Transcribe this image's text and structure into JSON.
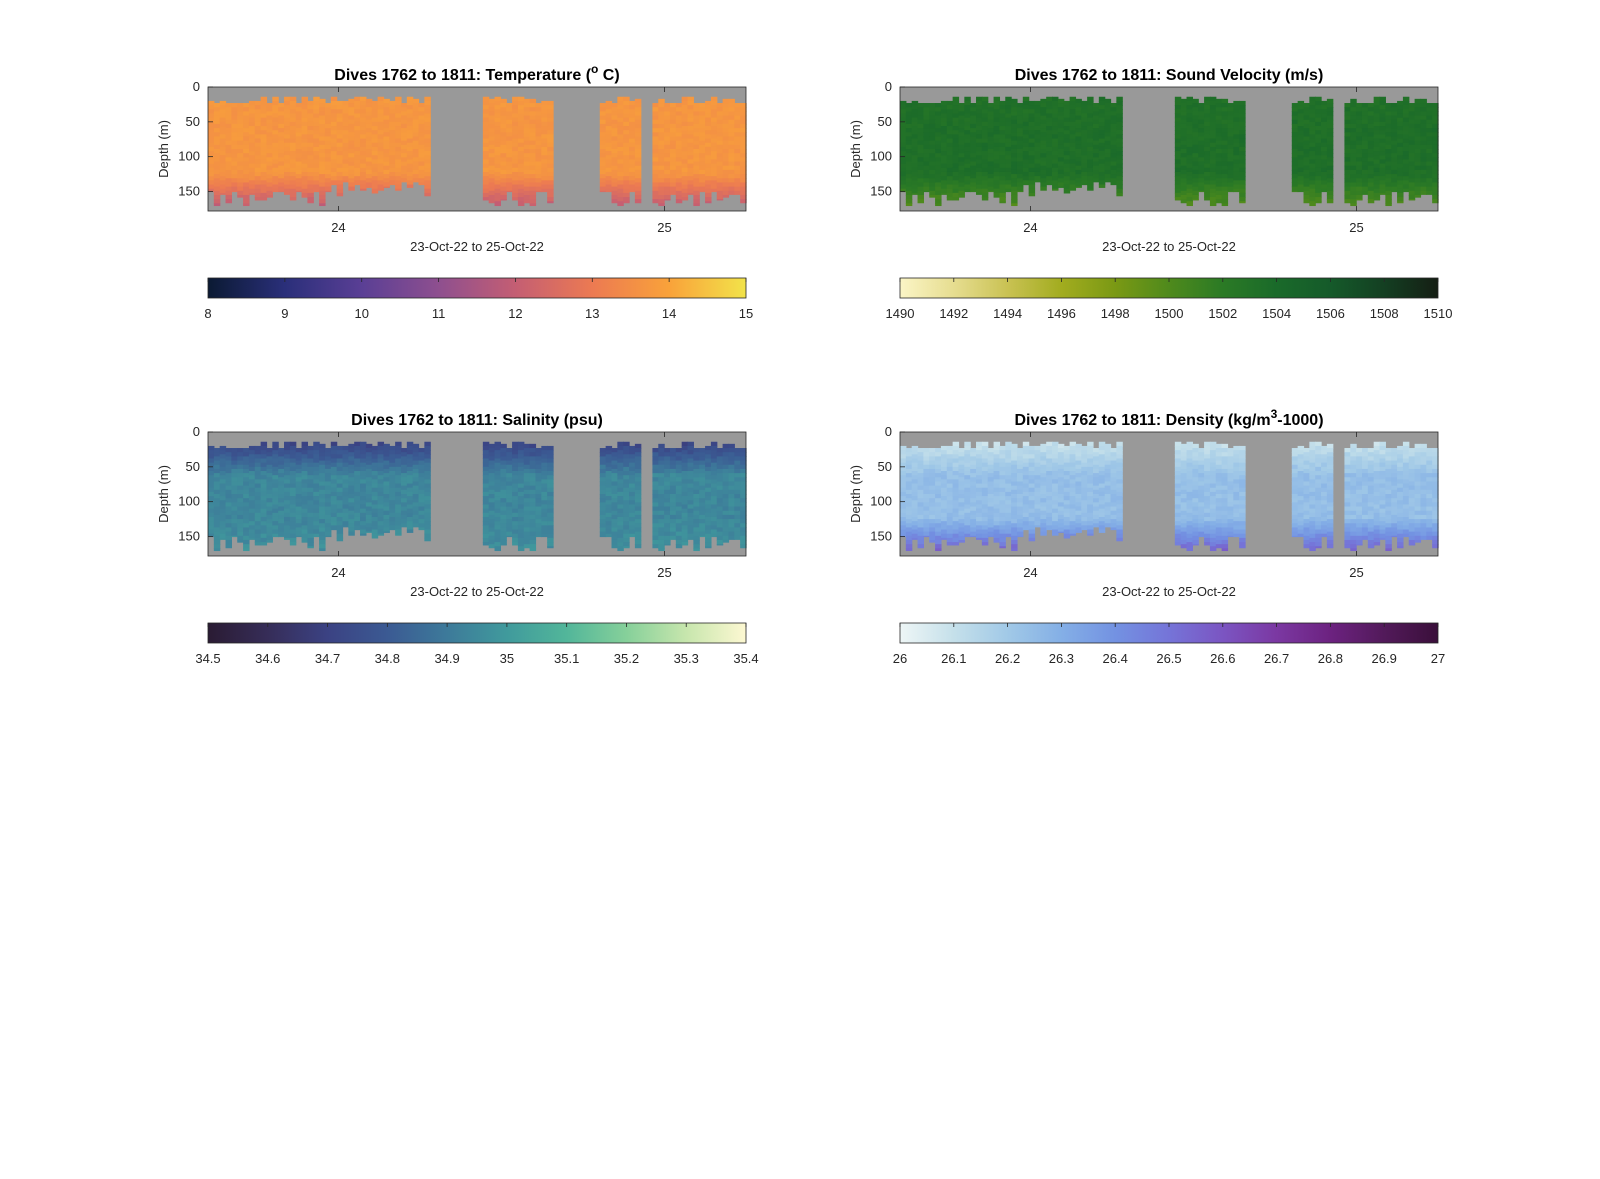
{
  "figure": {
    "background": "#ffffff",
    "nodata_color": "#999999"
  },
  "chart_data": [
    {
      "id": "temperature",
      "type": "heatmap",
      "title_main": "Dives 1762 to 1811: Temperature (",
      "title_sup": "o",
      "title_tail": " C)",
      "ylabel": "Depth (m)",
      "xlabel": "23-Oct-22 to 25-Oct-22",
      "yticks": [
        "0",
        "50",
        "100",
        "150"
      ],
      "ylim": [
        0,
        178
      ],
      "y_reversed": true,
      "xticks": [
        "24",
        "25"
      ],
      "xlim": [
        23.6,
        25.25
      ],
      "colorbar": {
        "ticks": [
          "8",
          "9",
          "10",
          "11",
          "12",
          "13",
          "14",
          "15"
        ],
        "range": [
          8,
          15
        ],
        "colors": [
          "#0b1a33",
          "#2a2f7a",
          "#5a3f95",
          "#8e4f8f",
          "#c45e73",
          "#ec7a52",
          "#f9a23a",
          "#f2e34a"
        ]
      },
      "field": {
        "surface": 13.7,
        "mid": 13.7,
        "deep": 11.7,
        "variation": 0.15
      },
      "data_gaps": [
        [
          24.29,
          24.44
        ],
        [
          24.66,
          24.81
        ],
        [
          24.93,
          24.96
        ]
      ]
    },
    {
      "id": "sound-velocity",
      "type": "heatmap",
      "title_main": "Dives 1762 to 1811: Sound Velocity (m/s)",
      "title_sup": "",
      "title_tail": "",
      "ylabel": "Depth (m)",
      "xlabel": "23-Oct-22 to 25-Oct-22",
      "yticks": [
        "0",
        "50",
        "100",
        "150"
      ],
      "ylim": [
        0,
        178
      ],
      "y_reversed": true,
      "xticks": [
        "24",
        "25"
      ],
      "xlim": [
        23.6,
        25.25
      ],
      "colorbar": {
        "ticks": [
          "1490",
          "1492",
          "1494",
          "1496",
          "1498",
          "1500",
          "1502",
          "1504",
          "1506",
          "1508",
          "1510"
        ],
        "range": [
          1490,
          1510
        ],
        "colors": [
          "#fbf5c6",
          "#e6dd90",
          "#c9c253",
          "#a2ac1f",
          "#7a9914",
          "#4f8a1c",
          "#2b7a25",
          "#1a6a2a",
          "#155a2a",
          "#143f22",
          "#151e14"
        ]
      },
      "field": {
        "surface": 1503.2,
        "mid": 1503.4,
        "deep": 1499.5,
        "variation": 0.5
      },
      "data_gaps": [
        [
          24.29,
          24.44
        ],
        [
          24.66,
          24.81
        ],
        [
          24.93,
          24.96
        ]
      ]
    },
    {
      "id": "salinity",
      "type": "heatmap",
      "title_main": "Dives 1762 to 1811: Salinity (psu)",
      "title_sup": "",
      "title_tail": "",
      "ylabel": "Depth (m)",
      "xlabel": "23-Oct-22 to 25-Oct-22",
      "yticks": [
        "0",
        "50",
        "100",
        "150"
      ],
      "ylim": [
        0,
        178
      ],
      "y_reversed": true,
      "xticks": [
        "24",
        "25"
      ],
      "xlim": [
        23.6,
        25.25
      ],
      "colorbar": {
        "ticks": [
          "34.5",
          "34.6",
          "34.7",
          "34.8",
          "34.9",
          "35",
          "35.1",
          "35.2",
          "35.3",
          "35.4"
        ],
        "range": [
          34.5,
          35.4
        ],
        "colors": [
          "#2a1b33",
          "#362d58",
          "#3b4283",
          "#3b5a93",
          "#3d7a9a",
          "#409a9c",
          "#52b69a",
          "#86d09a",
          "#c7e6ad",
          "#fdf8d2"
        ]
      },
      "field": {
        "surface": 34.72,
        "mid": 34.94,
        "deep": 34.97,
        "variation": 0.03
      },
      "data_gaps": [
        [
          24.29,
          24.44
        ],
        [
          24.66,
          24.81
        ],
        [
          24.93,
          24.96
        ]
      ]
    },
    {
      "id": "density",
      "type": "heatmap",
      "title_main": "Dives 1762 to 1811: Density (kg/m",
      "title_sup": "3",
      "title_tail": "-1000)",
      "ylabel": "Depth (m)",
      "xlabel": "23-Oct-22 to 25-Oct-22",
      "yticks": [
        "0",
        "50",
        "100",
        "150"
      ],
      "ylim": [
        0,
        178
      ],
      "y_reversed": true,
      "xticks": [
        "24",
        "25"
      ],
      "xlim": [
        23.6,
        25.25
      ],
      "colorbar": {
        "ticks": [
          "26",
          "26.1",
          "26.2",
          "26.3",
          "26.4",
          "26.5",
          "26.6",
          "26.7",
          "26.8",
          "26.9",
          "27"
        ],
        "range": [
          26,
          27
        ],
        "colors": [
          "#eef6f6",
          "#c5e0ea",
          "#a1c9e7",
          "#84afe6",
          "#7392e2",
          "#7574d8",
          "#7b55c2",
          "#7b38a2",
          "#6c2280",
          "#521a5a",
          "#3a0f3a"
        ]
      },
      "field": {
        "surface": 26.1,
        "mid": 26.24,
        "deep": 26.6,
        "variation": 0.03
      },
      "data_gaps": [
        [
          24.29,
          24.44
        ],
        [
          24.66,
          24.81
        ],
        [
          24.93,
          24.96
        ]
      ]
    }
  ]
}
